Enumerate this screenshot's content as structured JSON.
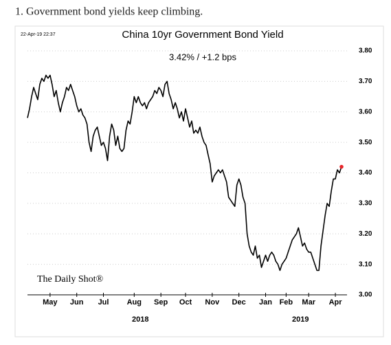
{
  "caption": "1. Government bond yields keep climbing.",
  "chart_data": {
    "type": "line",
    "title": "China 10yr Government Bond Yield",
    "subtitle": "3.42% / +1.2 bps",
    "timestamp": "22-Apr-19 22:37",
    "annotations": [
      "The Daily Shot®"
    ],
    "series": [
      {
        "name": "China 10yr",
        "color": "#000000",
        "values": [
          3.58,
          3.61,
          3.65,
          3.68,
          3.66,
          3.64,
          3.69,
          3.71,
          3.7,
          3.72,
          3.71,
          3.72,
          3.69,
          3.65,
          3.67,
          3.63,
          3.6,
          3.63,
          3.65,
          3.68,
          3.67,
          3.69,
          3.67,
          3.65,
          3.62,
          3.6,
          3.61,
          3.59,
          3.58,
          3.56,
          3.5,
          3.47,
          3.52,
          3.54,
          3.55,
          3.52,
          3.49,
          3.5,
          3.48,
          3.44,
          3.52,
          3.56,
          3.54,
          3.49,
          3.52,
          3.48,
          3.47,
          3.48,
          3.54,
          3.57,
          3.56,
          3.6,
          3.65,
          3.63,
          3.65,
          3.63,
          3.62,
          3.63,
          3.61,
          3.63,
          3.64,
          3.65,
          3.67,
          3.66,
          3.68,
          3.67,
          3.65,
          3.69,
          3.7,
          3.66,
          3.64,
          3.61,
          3.63,
          3.61,
          3.58,
          3.6,
          3.57,
          3.61,
          3.58,
          3.55,
          3.57,
          3.53,
          3.54,
          3.53,
          3.55,
          3.52,
          3.5,
          3.49,
          3.46,
          3.43,
          3.37,
          3.39,
          3.4,
          3.41,
          3.4,
          3.41,
          3.39,
          3.37,
          3.32,
          3.31,
          3.3,
          3.29,
          3.36,
          3.38,
          3.36,
          3.32,
          3.3,
          3.2,
          3.16,
          3.14,
          3.13,
          3.16,
          3.12,
          3.13,
          3.09,
          3.11,
          3.13,
          3.11,
          3.13,
          3.14,
          3.13,
          3.11,
          3.1,
          3.08,
          3.1,
          3.11,
          3.12,
          3.14,
          3.16,
          3.18,
          3.19,
          3.2,
          3.22,
          3.19,
          3.16,
          3.17,
          3.15,
          3.14,
          3.14,
          3.12,
          3.1,
          3.08,
          3.08,
          3.16,
          3.21,
          3.26,
          3.3,
          3.29,
          3.34,
          3.38,
          3.38,
          3.41,
          3.4,
          3.42
        ]
      }
    ],
    "highlight_last": true,
    "highlight_color": "#e8262a",
    "xlim": [
      0,
      153
    ],
    "xticks": [
      {
        "value": 11,
        "label": "May"
      },
      {
        "value": 24,
        "label": "Jun"
      },
      {
        "value": 37,
        "label": "Jul"
      },
      {
        "value": 52,
        "label": "Aug"
      },
      {
        "value": 65,
        "label": "Sep"
      },
      {
        "value": 77,
        "label": "Oct"
      },
      {
        "value": 90,
        "label": "Nov"
      },
      {
        "value": 103,
        "label": "Dec"
      },
      {
        "value": 116,
        "label": "Jan"
      },
      {
        "value": 126,
        "label": "Feb"
      },
      {
        "value": 137,
        "label": "Mar"
      },
      {
        "value": 150,
        "label": "Apr"
      }
    ],
    "year_labels": [
      {
        "value": 55,
        "label": "2018"
      },
      {
        "value": 133,
        "label": "2019"
      }
    ],
    "ylim": [
      3.0,
      3.8
    ],
    "yticks": [
      {
        "value": 3.0,
        "label": "3.00"
      },
      {
        "value": 3.1,
        "label": "3.10"
      },
      {
        "value": 3.2,
        "label": "3.20"
      },
      {
        "value": 3.3,
        "label": "3.30"
      },
      {
        "value": 3.4,
        "label": "3.40"
      },
      {
        "value": 3.5,
        "label": "3.50"
      },
      {
        "value": 3.6,
        "label": "3.60"
      },
      {
        "value": 3.7,
        "label": "3.70"
      },
      {
        "value": 3.8,
        "label": "3.80"
      }
    ],
    "grid": true
  }
}
